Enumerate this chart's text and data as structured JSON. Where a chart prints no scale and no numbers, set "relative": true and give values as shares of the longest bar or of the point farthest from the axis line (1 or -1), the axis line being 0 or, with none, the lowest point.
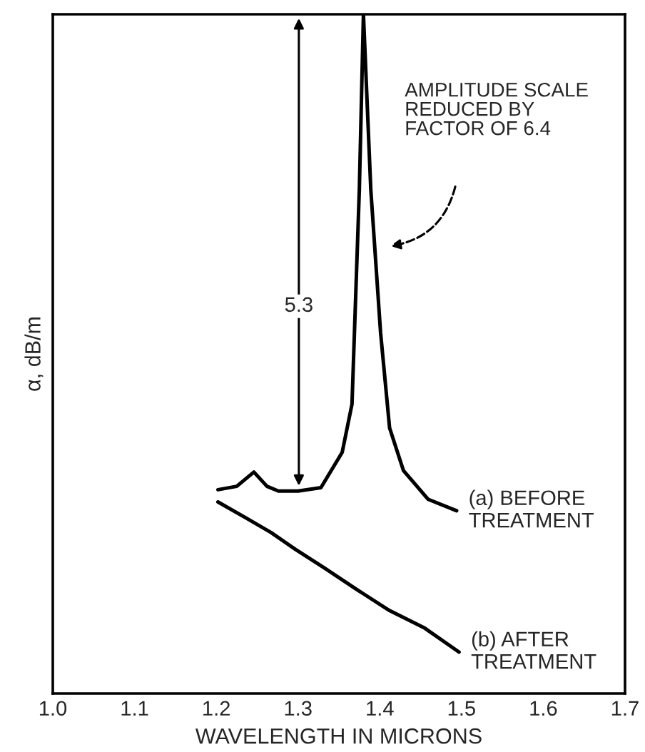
{
  "chart_data": {
    "type": "line",
    "relative": true,
    "xlabel": "WAVELENGTH IN MICRONS",
    "ylabel": "α, dB/m",
    "xlim": [
      1.0,
      1.7
    ],
    "xticks": [
      {
        "value": 1.0,
        "label": "1.0"
      },
      1.1,
      1.2,
      1.3,
      1.4,
      1.5,
      1.6,
      {
        "value": 1.7,
        "label": "1.7"
      }
    ],
    "tick_labels": "x",
    "grid": false,
    "legend": false,
    "marker": "none",
    "line_style": "solid",
    "series": [
      {
        "name": "(a) BEFORE\nTREATMENT",
        "color": "#000000",
        "x": [
          1.202,
          1.225,
          1.246,
          1.262,
          1.276,
          1.3,
          1.328,
          1.354,
          1.366,
          1.375,
          1.38,
          1.389,
          1.401,
          1.412,
          1.429,
          1.459,
          1.494
        ],
        "values": [
          0.3,
          0.305,
          0.326,
          0.305,
          0.298,
          0.298,
          0.303,
          0.355,
          0.426,
          0.742,
          1.0,
          0.742,
          0.531,
          0.391,
          0.328,
          0.286,
          0.269
        ]
      },
      {
        "name": "(b) AFTER\nTREATMENT",
        "color": "#000000",
        "x": [
          1.202,
          1.237,
          1.267,
          1.297,
          1.332,
          1.372,
          1.412,
          1.454,
          1.497
        ],
        "values": [
          0.282,
          0.258,
          0.237,
          0.212,
          0.185,
          0.153,
          0.122,
          0.097,
          0.061
        ]
      }
    ],
    "annotations": [
      "5.3",
      "AMPLITUDE SCALE\nREDUCED BY\nFACTOR OF 6.4"
    ]
  }
}
